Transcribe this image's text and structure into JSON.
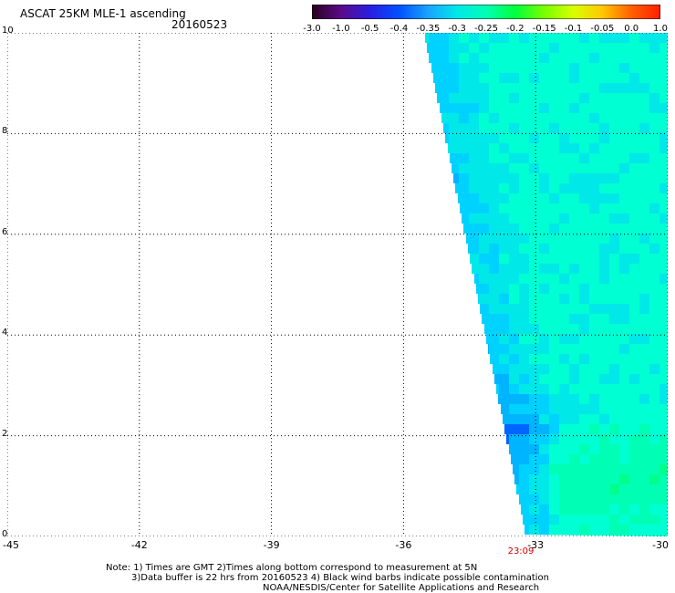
{
  "header": {
    "title": "ASCAT 25KM MLE-1 ascending",
    "date": "20160523"
  },
  "colorbar": {
    "ticks": [
      "-3.0",
      "-1.0",
      "-0.5",
      "-0.4",
      "-0.35",
      "-0.3",
      "-0.25",
      "-0.2",
      "-0.15",
      "-0.1",
      "-0.05",
      "0.0",
      "1.0"
    ],
    "colors": [
      "#2a001e",
      "#5a0b87",
      "#2a1ee0",
      "#0050ff",
      "#1aa4ff",
      "#00e8e8",
      "#00ffb4",
      "#00ff3c",
      "#78ff00",
      "#d8ff00",
      "#ffc800",
      "#ff6000",
      "#ff1e00"
    ]
  },
  "map": {
    "x_ticks": [
      "-45",
      "-42",
      "-39",
      "-36",
      "-33",
      "-30"
    ],
    "y_ticks": [
      "0",
      "2",
      "4",
      "6",
      "8",
      "10"
    ],
    "lon_range": [
      -45,
      -30
    ],
    "lat_range": [
      0,
      10
    ],
    "gridlines": true,
    "swath_time": "23:09",
    "swath_time_color": "#cc0000"
  },
  "notes": {
    "line1": "Note: 1) Times are GMT 2)Times along bottom correspond to measurement at 5N",
    "line2": "3)Data buffer is 22 hrs from 20160523 4) Black wind barbs indicate possible contamination",
    "line3": "NOAA/NESDIS/Center for Satellite Applications and Research"
  }
}
